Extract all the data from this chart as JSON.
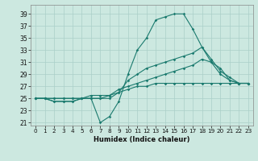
{
  "xlabel": "Humidex (Indice chaleur)",
  "bg_color": "#cce8e0",
  "grid_color": "#aacfc8",
  "line_color": "#1a7a6e",
  "xlim": [
    -0.5,
    23.5
  ],
  "ylim": [
    20.5,
    40.5
  ],
  "xticks": [
    0,
    1,
    2,
    3,
    4,
    5,
    6,
    7,
    8,
    9,
    10,
    11,
    12,
    13,
    14,
    15,
    16,
    17,
    18,
    19,
    20,
    21,
    22,
    23
  ],
  "yticks": [
    21,
    23,
    25,
    27,
    29,
    31,
    33,
    35,
    37,
    39
  ],
  "line1": [
    25.0,
    25.0,
    24.5,
    24.5,
    24.5,
    25.0,
    25.0,
    21.0,
    22.0,
    24.5,
    29.0,
    33.0,
    35.0,
    38.0,
    38.5,
    39.0,
    39.0,
    36.5,
    33.5,
    31.0,
    29.0,
    28.0,
    27.5,
    27.5
  ],
  "line2": [
    25.0,
    25.0,
    24.5,
    24.5,
    24.5,
    25.0,
    25.0,
    25.0,
    25.0,
    26.0,
    28.0,
    29.0,
    30.0,
    30.5,
    31.0,
    31.5,
    32.0,
    32.5,
    33.5,
    31.5,
    29.5,
    28.5,
    27.5,
    27.5
  ],
  "line3": [
    25.0,
    25.0,
    25.0,
    25.0,
    25.0,
    25.0,
    25.0,
    25.0,
    25.5,
    26.5,
    27.0,
    27.5,
    28.0,
    28.5,
    29.0,
    29.5,
    30.0,
    30.5,
    31.5,
    31.0,
    30.0,
    28.0,
    27.5,
    27.5
  ],
  "line4": [
    25.0,
    25.0,
    25.0,
    25.0,
    25.0,
    25.0,
    25.5,
    25.5,
    25.5,
    26.0,
    26.5,
    27.0,
    27.0,
    27.5,
    27.5,
    27.5,
    27.5,
    27.5,
    27.5,
    27.5,
    27.5,
    27.5,
    27.5,
    27.5
  ],
  "xlabel_fontsize": 6.0,
  "tick_fontsize": 5.2,
  "ytick_fontsize": 5.5,
  "linewidth": 0.8,
  "markersize": 1.8
}
